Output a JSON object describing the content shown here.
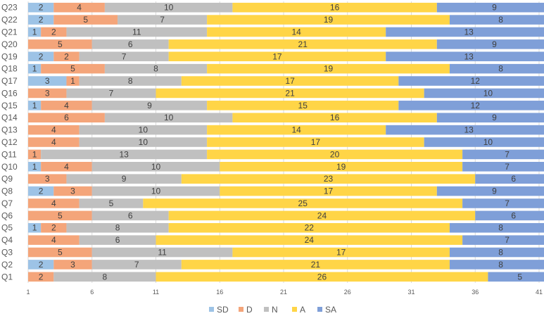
{
  "chart_data": {
    "type": "bar",
    "orientation": "horizontal",
    "stacked": true,
    "title": "",
    "xlabel": "",
    "ylabel": "",
    "xlim": [
      1,
      41
    ],
    "xticks": [
      1,
      6,
      11,
      16,
      21,
      26,
      31,
      36,
      41
    ],
    "legend_position": "bottom",
    "categories": [
      "Q23",
      "Q22",
      "Q21",
      "Q20",
      "Q19",
      "Q18",
      "Q17",
      "Q16",
      "Q15",
      "Q14",
      "Q13",
      "Q12",
      "Q11",
      "Q10",
      "Q9",
      "Q8",
      "Q7",
      "Q6",
      "Q5",
      "Q4",
      "Q3",
      "Q2",
      "Q1"
    ],
    "series": [
      {
        "name": "SD",
        "color": "#9DC3E6",
        "values": [
          2,
          2,
          1,
          0,
          2,
          1,
          3,
          0,
          1,
          0,
          0,
          0,
          0,
          1,
          0,
          2,
          0,
          0,
          1,
          0,
          0,
          2,
          0
        ]
      },
      {
        "name": "D",
        "color": "#F4A57A",
        "values": [
          4,
          5,
          2,
          5,
          2,
          5,
          1,
          3,
          4,
          6,
          4,
          4,
          1,
          4,
          3,
          3,
          4,
          5,
          2,
          4,
          5,
          3,
          2
        ]
      },
      {
        "name": "N",
        "color": "#C0C0C0",
        "values": [
          10,
          7,
          11,
          6,
          7,
          8,
          8,
          7,
          9,
          10,
          10,
          10,
          13,
          10,
          9,
          10,
          5,
          6,
          8,
          6,
          11,
          7,
          8
        ]
      },
      {
        "name": "A",
        "color": "#FFD547",
        "values": [
          16,
          19,
          14,
          21,
          17,
          19,
          17,
          21,
          15,
          16,
          14,
          17,
          20,
          19,
          23,
          17,
          25,
          24,
          22,
          24,
          17,
          21,
          26
        ]
      },
      {
        "name": "SA",
        "color": "#7F9FD8",
        "values": [
          9,
          8,
          13,
          9,
          13,
          8,
          12,
          10,
          12,
          9,
          13,
          10,
          7,
          7,
          6,
          9,
          7,
          6,
          8,
          7,
          8,
          8,
          5
        ]
      }
    ]
  }
}
